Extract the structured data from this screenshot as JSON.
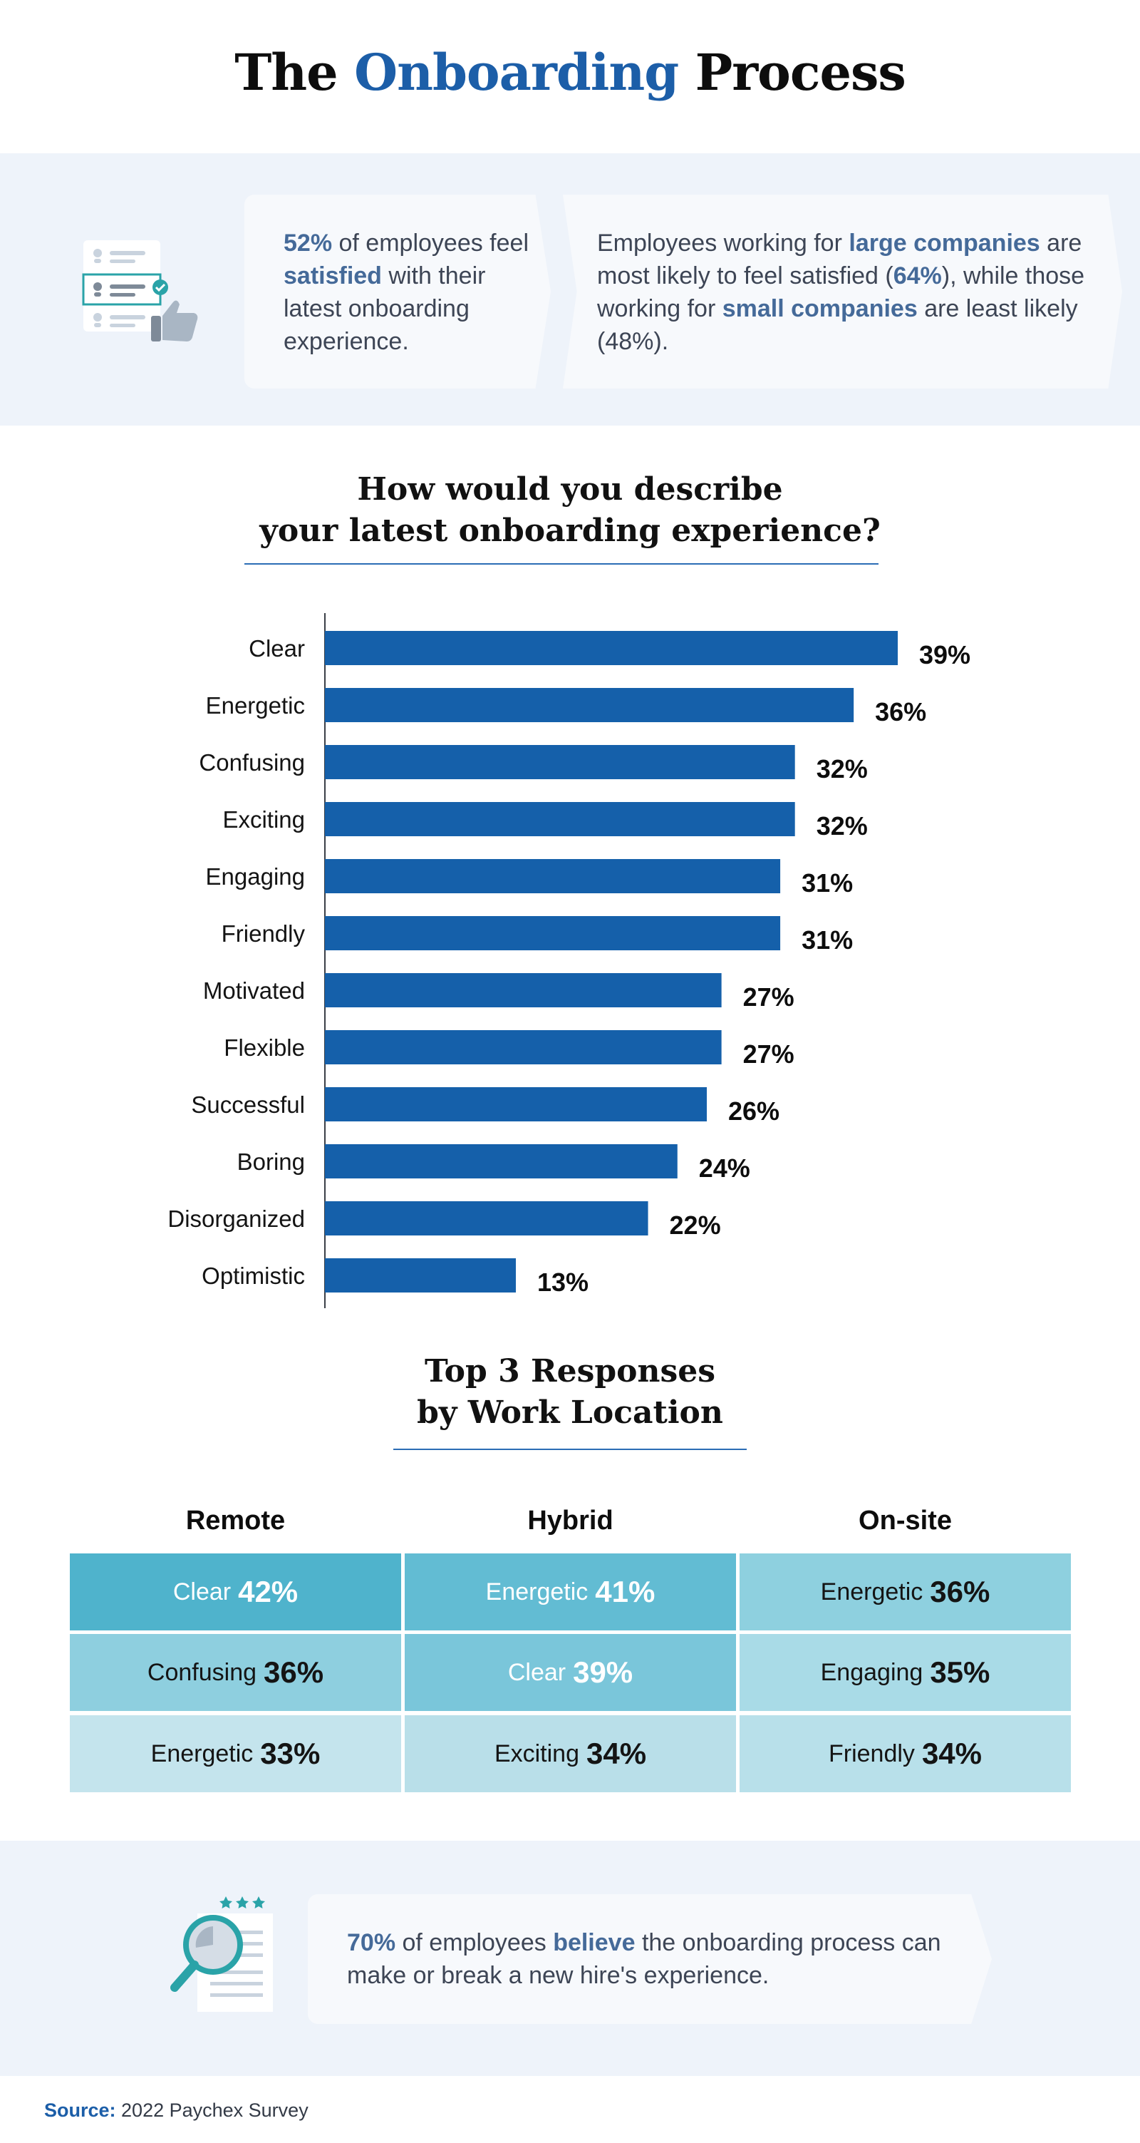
{
  "header": {
    "title_pre": "The",
    "title_accent": "Onboarding",
    "title_post": "Process"
  },
  "stats": {
    "card1": {
      "pct": "52%",
      "t1": " of employees feel ",
      "kw": "satisfied",
      "t2": " with their latest onboarding experience."
    },
    "card2": {
      "t1": "Employees working for ",
      "kw1": "large companies",
      "t2": " are most likely to feel satisfied (",
      "pct": "64%",
      "t3": "), while those working for ",
      "kw2": "small companies",
      "t4": " are least likely (48%)."
    }
  },
  "chart_section": {
    "title_line1": "How would you describe",
    "title_line2": "your latest onboarding experience?"
  },
  "chart_data": {
    "type": "bar",
    "orientation": "horizontal",
    "title": "How would you describe your latest onboarding experience?",
    "categories": [
      "Clear",
      "Energetic",
      "Confusing",
      "Exciting",
      "Engaging",
      "Friendly",
      "Motivated",
      "Flexible",
      "Successful",
      "Boring",
      "Disorganized",
      "Optimistic"
    ],
    "values": [
      39,
      36,
      32,
      32,
      31,
      31,
      27,
      27,
      26,
      24,
      22,
      13
    ],
    "value_labels": [
      "39%",
      "36%",
      "32%",
      "32%",
      "31%",
      "31%",
      "27%",
      "27%",
      "26%",
      "24%",
      "22%",
      "13%"
    ],
    "xlim": [
      0,
      39
    ],
    "bar_color": "#1560aa",
    "grid": false
  },
  "location_section": {
    "title_line1": "Top 3 Responses",
    "title_line2": "by Work Location",
    "columns": [
      {
        "name": "Remote",
        "rows": [
          {
            "label": "Clear",
            "pct": "42%"
          },
          {
            "label": "Confusing",
            "pct": "36%"
          },
          {
            "label": "Energetic",
            "pct": "33%"
          }
        ]
      },
      {
        "name": "Hybrid",
        "rows": [
          {
            "label": "Energetic",
            "pct": "41%"
          },
          {
            "label": "Clear",
            "pct": "39%"
          },
          {
            "label": "Exciting",
            "pct": "34%"
          }
        ]
      },
      {
        "name": "On-site",
        "rows": [
          {
            "label": "Energetic",
            "pct": "36%"
          },
          {
            "label": "Engaging",
            "pct": "35%"
          },
          {
            "label": "Friendly",
            "pct": "34%"
          }
        ]
      }
    ]
  },
  "bottom_stat": {
    "pct": "70%",
    "t1": " of employees ",
    "kw": "believe",
    "t2": " the onboarding process can make or break a new hire's experience."
  },
  "source": {
    "label": "Source:",
    "text": " 2022 Paychex Survey"
  },
  "colors": {
    "accent": "#1c5ea8",
    "highlight_text": "#456a99",
    "band_bg": "#eef3fa",
    "cell_remote": [
      "#4fb3cc",
      "#8ecfdf",
      "#c4e4ed"
    ],
    "cell_hybrid": [
      "#62bcd3",
      "#7ac6da",
      "#b9dfe9"
    ],
    "cell_onsite": [
      "#8ed0df",
      "#a9dbe7",
      "#b8e0ea"
    ]
  }
}
